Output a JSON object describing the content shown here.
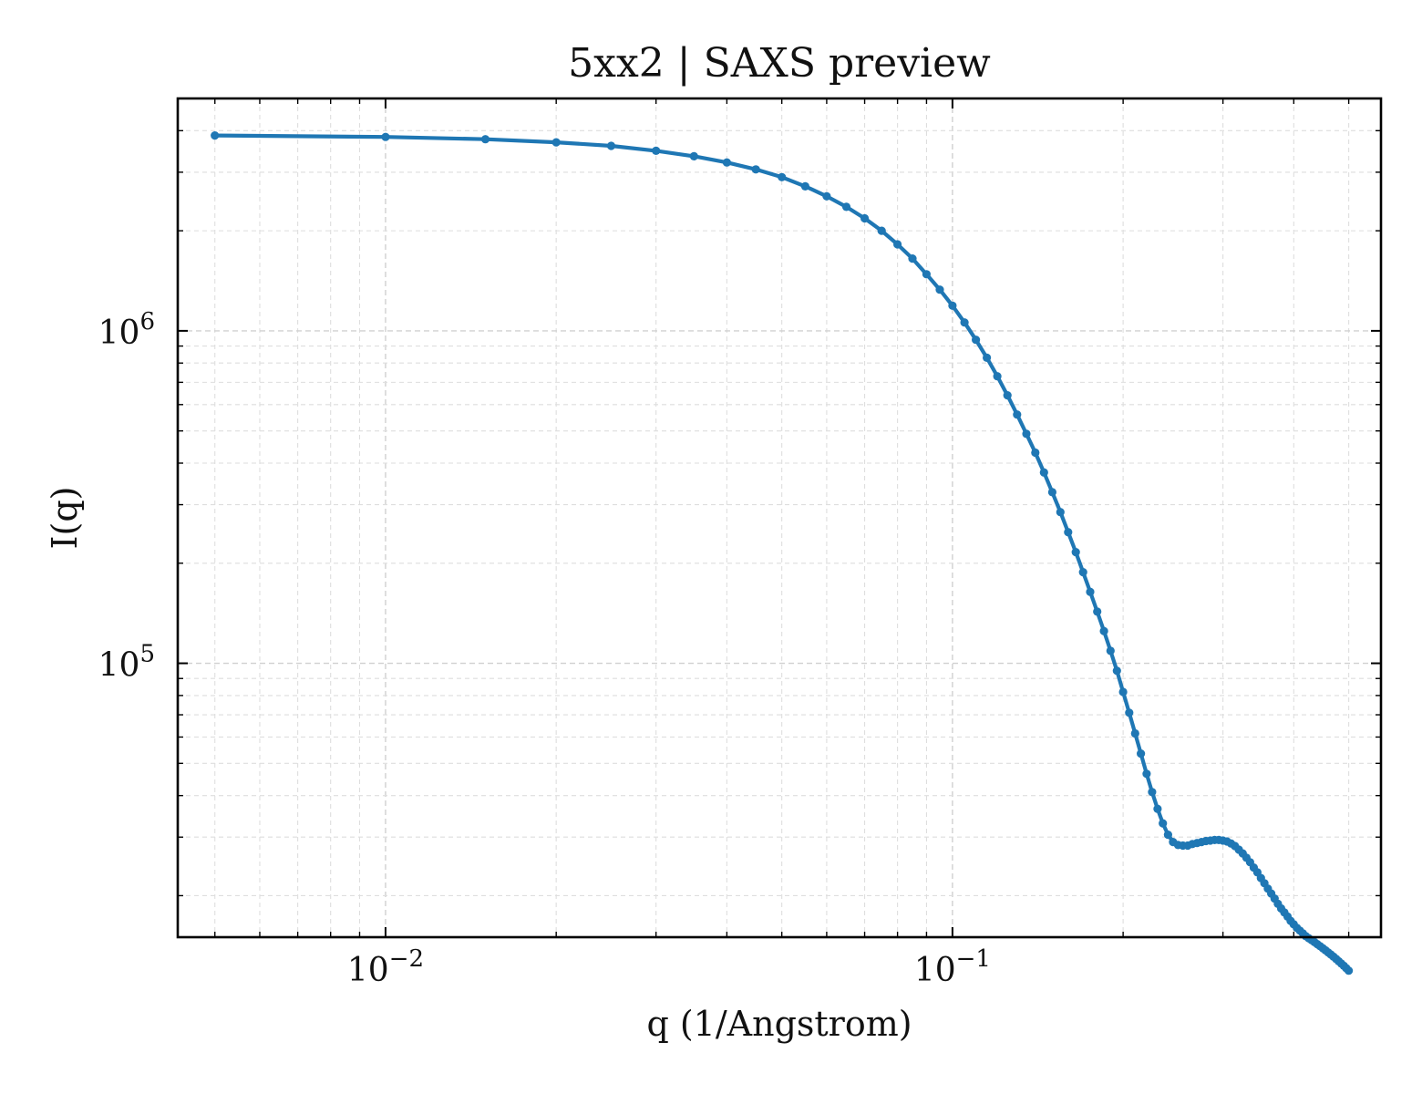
{
  "chart_data": {
    "type": "line",
    "title": "5xx2 | SAXS preview",
    "xlabel": "q (1/Angstrom)",
    "ylabel": "I(q)",
    "xscale": "log",
    "yscale": "log",
    "xlim": [
      0.0043,
      0.57
    ],
    "ylim": [
      15000,
      5000000
    ],
    "grid": true,
    "legend": "none",
    "x_ticks": [
      {
        "value": 0.01,
        "base": "10",
        "exp": "−2"
      },
      {
        "value": 0.1,
        "base": "10",
        "exp": "−1"
      }
    ],
    "y_ticks": [
      {
        "value": 100000,
        "base": "10",
        "exp": "5"
      },
      {
        "value": 1000000,
        "base": "10",
        "exp": "6"
      }
    ],
    "series": [
      {
        "color": "#1f77b4",
        "marker": "circle",
        "x": [
          0.005,
          0.01,
          0.015,
          0.02,
          0.025,
          0.03,
          0.035,
          0.04,
          0.045,
          0.05,
          0.055,
          0.06,
          0.065,
          0.07,
          0.075,
          0.08,
          0.085,
          0.09,
          0.095,
          0.1,
          0.105,
          0.11,
          0.115,
          0.12,
          0.125,
          0.13,
          0.135,
          0.14,
          0.145,
          0.15,
          0.155,
          0.16,
          0.165,
          0.17,
          0.175,
          0.18,
          0.185,
          0.19,
          0.195,
          0.2,
          0.205,
          0.21,
          0.215,
          0.22,
          0.225,
          0.23,
          0.235,
          0.24,
          0.245,
          0.25,
          0.255,
          0.26,
          0.265,
          0.27,
          0.275,
          0.28,
          0.285,
          0.29,
          0.295,
          0.3,
          0.305,
          0.31,
          0.315,
          0.32,
          0.325,
          0.33,
          0.335,
          0.34,
          0.345,
          0.35,
          0.355,
          0.36,
          0.365,
          0.37,
          0.375,
          0.38,
          0.385,
          0.39,
          0.395,
          0.4,
          0.405,
          0.41,
          0.415,
          0.42,
          0.425,
          0.43,
          0.435,
          0.44,
          0.445,
          0.45,
          0.455,
          0.46,
          0.465,
          0.47,
          0.475,
          0.48,
          0.485,
          0.49,
          0.495,
          0.5
        ],
        "y": [
          3870000,
          3830000,
          3770000,
          3690000,
          3600000,
          3480000,
          3350000,
          3210000,
          3060000,
          2900000,
          2720000,
          2540000,
          2360000,
          2180000,
          2000000,
          1820000,
          1650000,
          1480000,
          1330000,
          1190000,
          1060000,
          940000,
          830000,
          730000,
          640000,
          560000,
          490000,
          430000,
          375000,
          327000,
          285000,
          248000,
          216000,
          188000,
          164000,
          143000,
          125000,
          109000,
          95000,
          82000,
          71000,
          61500,
          53500,
          46500,
          41000,
          36500,
          33000,
          30500,
          29000,
          28400,
          28300,
          28300,
          28600,
          28800,
          29000,
          29200,
          29300,
          29400,
          29400,
          29300,
          29100,
          28700,
          28200,
          27500,
          26800,
          26000,
          25200,
          24300,
          23500,
          22600,
          21800,
          21000,
          20300,
          19600,
          18900,
          18300,
          17800,
          17300,
          16800,
          16400,
          16000,
          15700,
          15400,
          15100,
          14900,
          14700,
          14500,
          14300,
          14100,
          13900,
          13700,
          13500,
          13300,
          13100,
          12900,
          12700,
          12500,
          12300,
          12100,
          11900
        ]
      }
    ]
  }
}
